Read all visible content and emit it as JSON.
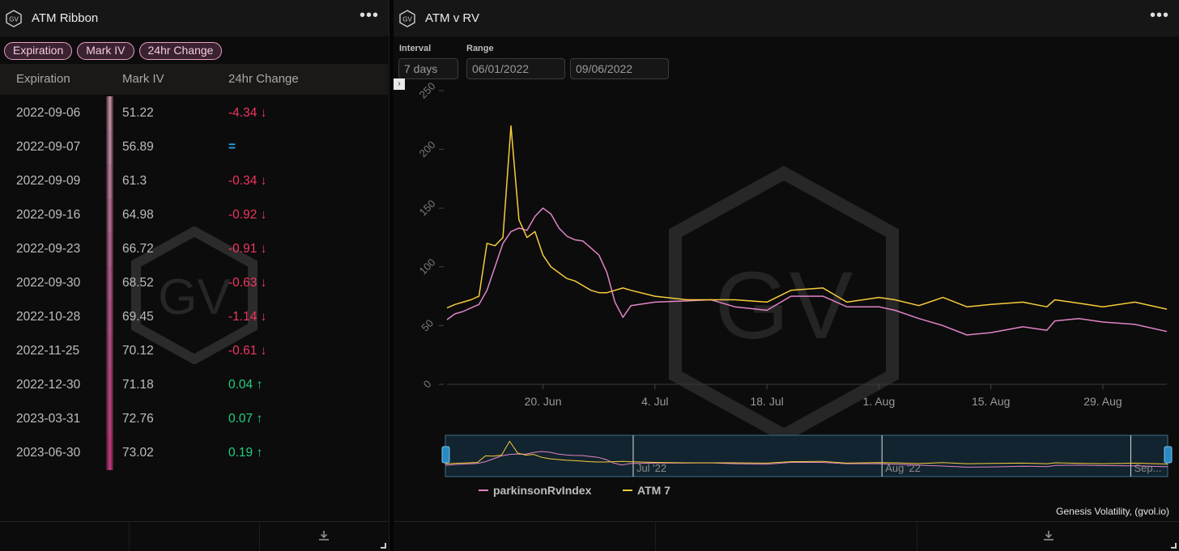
{
  "left": {
    "title": "ATM Ribbon",
    "pills": [
      "Expiration",
      "Mark IV",
      "24hr Change"
    ],
    "headers": [
      "Expiration",
      "Mark IV",
      "24hr Change"
    ],
    "rows": [
      {
        "exp": "2022-09-06",
        "iv": "51.22",
        "chg": "-4.34",
        "dir": "down",
        "color": "#b98c9b"
      },
      {
        "exp": "2022-09-07",
        "iv": "56.89",
        "chg": "=",
        "dir": "flat",
        "color": "#b4859a"
      },
      {
        "exp": "2022-09-09",
        "iv": "61.3",
        "chg": "-0.34",
        "dir": "down",
        "color": "#b07a94"
      },
      {
        "exp": "2022-09-16",
        "iv": "64.98",
        "chg": "-0.92",
        "dir": "down",
        "color": "#ad6c8d"
      },
      {
        "exp": "2022-09-23",
        "iv": "66.72",
        "chg": "-0.91",
        "dir": "down",
        "color": "#aa6388"
      },
      {
        "exp": "2022-09-30",
        "iv": "68.52",
        "chg": "-0.63",
        "dir": "down",
        "color": "#a95b85"
      },
      {
        "exp": "2022-10-28",
        "iv": "69.45",
        "chg": "-1.14",
        "dir": "down",
        "color": "#ac5284"
      },
      {
        "exp": "2022-11-25",
        "iv": "70.12",
        "chg": "-0.61",
        "dir": "down",
        "color": "#b04a82"
      },
      {
        "exp": "2022-12-30",
        "iv": "71.18",
        "chg": "0.04",
        "dir": "up",
        "color": "#b4437f"
      },
      {
        "exp": "2023-03-31",
        "iv": "72.76",
        "chg": "0.07",
        "dir": "up",
        "color": "#b83d7d"
      },
      {
        "exp": "2023-06-30",
        "iv": "73.02",
        "chg": "0.19",
        "dir": "up",
        "color": "#bb377b"
      }
    ],
    "watermark": "GV"
  },
  "right": {
    "title": "ATM v RV",
    "interval_label": "Interval",
    "interval_value": "7 days",
    "range_label": "Range",
    "range_start": "06/01/2022",
    "range_end": "09/06/2022",
    "expand_glyph": "›",
    "credit": "Genesis Volatility, (gvol.io)",
    "watermark": "GV"
  },
  "chart_data": {
    "type": "line",
    "x_axis": "date",
    "y_ticks": [
      0,
      50,
      100,
      150,
      200,
      250
    ],
    "ylim": [
      0,
      250
    ],
    "x_ticks": [
      "20. Jun",
      "4. Jul",
      "18. Jul",
      "1. Aug",
      "15. Aug",
      "29. Aug"
    ],
    "navigator_labels": [
      "Jul '22",
      "Aug '22",
      "Sep..."
    ],
    "grid": false,
    "legend_position": "bottom",
    "series": [
      {
        "name": "parkinsonRvIndex",
        "color": "#e184c6",
        "points": [
          [
            "2022-06-08",
            55
          ],
          [
            "2022-06-09",
            60
          ],
          [
            "2022-06-10",
            62
          ],
          [
            "2022-06-11",
            65
          ],
          [
            "2022-06-12",
            68
          ],
          [
            "2022-06-13",
            80
          ],
          [
            "2022-06-14",
            100
          ],
          [
            "2022-06-15",
            120
          ],
          [
            "2022-06-16",
            130
          ],
          [
            "2022-06-17",
            133
          ],
          [
            "2022-06-18",
            131
          ],
          [
            "2022-06-19",
            143
          ],
          [
            "2022-06-20",
            150
          ],
          [
            "2022-06-21",
            145
          ],
          [
            "2022-06-22",
            133
          ],
          [
            "2022-06-23",
            126
          ],
          [
            "2022-06-24",
            123
          ],
          [
            "2022-06-25",
            122
          ],
          [
            "2022-06-26",
            116
          ],
          [
            "2022-06-27",
            110
          ],
          [
            "2022-06-28",
            95
          ],
          [
            "2022-06-29",
            70
          ],
          [
            "2022-06-30",
            57
          ],
          [
            "2022-07-01",
            67
          ],
          [
            "2022-07-04",
            70
          ],
          [
            "2022-07-08",
            71
          ],
          [
            "2022-07-11",
            72
          ],
          [
            "2022-07-14",
            66
          ],
          [
            "2022-07-18",
            63
          ],
          [
            "2022-07-21",
            75
          ],
          [
            "2022-07-25",
            75
          ],
          [
            "2022-07-28",
            66
          ],
          [
            "2022-08-01",
            66
          ],
          [
            "2022-08-03",
            63
          ],
          [
            "2022-08-06",
            56
          ],
          [
            "2022-08-09",
            50
          ],
          [
            "2022-08-12",
            42
          ],
          [
            "2022-08-15",
            44
          ],
          [
            "2022-08-19",
            49
          ],
          [
            "2022-08-22",
            46
          ],
          [
            "2022-08-23",
            54
          ],
          [
            "2022-08-26",
            56
          ],
          [
            "2022-08-29",
            53
          ],
          [
            "2022-09-02",
            51
          ],
          [
            "2022-09-06",
            45
          ]
        ]
      },
      {
        "name": "ATM 7",
        "color": "#f7cc3a",
        "points": [
          [
            "2022-06-08",
            65
          ],
          [
            "2022-06-09",
            68
          ],
          [
            "2022-06-10",
            70
          ],
          [
            "2022-06-11",
            72
          ],
          [
            "2022-06-12",
            75
          ],
          [
            "2022-06-13",
            120
          ],
          [
            "2022-06-14",
            118
          ],
          [
            "2022-06-15",
            125
          ],
          [
            "2022-06-16",
            220
          ],
          [
            "2022-06-17",
            140
          ],
          [
            "2022-06-18",
            125
          ],
          [
            "2022-06-19",
            130
          ],
          [
            "2022-06-20",
            110
          ],
          [
            "2022-06-21",
            100
          ],
          [
            "2022-06-22",
            95
          ],
          [
            "2022-06-23",
            90
          ],
          [
            "2022-06-24",
            88
          ],
          [
            "2022-06-25",
            84
          ],
          [
            "2022-06-26",
            80
          ],
          [
            "2022-06-27",
            78
          ],
          [
            "2022-06-28",
            78
          ],
          [
            "2022-06-29",
            80
          ],
          [
            "2022-06-30",
            82
          ],
          [
            "2022-07-01",
            80
          ],
          [
            "2022-07-04",
            75
          ],
          [
            "2022-07-08",
            72
          ],
          [
            "2022-07-11",
            72
          ],
          [
            "2022-07-14",
            72
          ],
          [
            "2022-07-18",
            70
          ],
          [
            "2022-07-21",
            80
          ],
          [
            "2022-07-25",
            82
          ],
          [
            "2022-07-28",
            70
          ],
          [
            "2022-08-01",
            74
          ],
          [
            "2022-08-03",
            72
          ],
          [
            "2022-08-06",
            67
          ],
          [
            "2022-08-09",
            74
          ],
          [
            "2022-08-12",
            66
          ],
          [
            "2022-08-15",
            68
          ],
          [
            "2022-08-19",
            70
          ],
          [
            "2022-08-22",
            66
          ],
          [
            "2022-08-23",
            72
          ],
          [
            "2022-08-26",
            69
          ],
          [
            "2022-08-29",
            66
          ],
          [
            "2022-09-02",
            70
          ],
          [
            "2022-09-06",
            64
          ]
        ]
      }
    ]
  }
}
